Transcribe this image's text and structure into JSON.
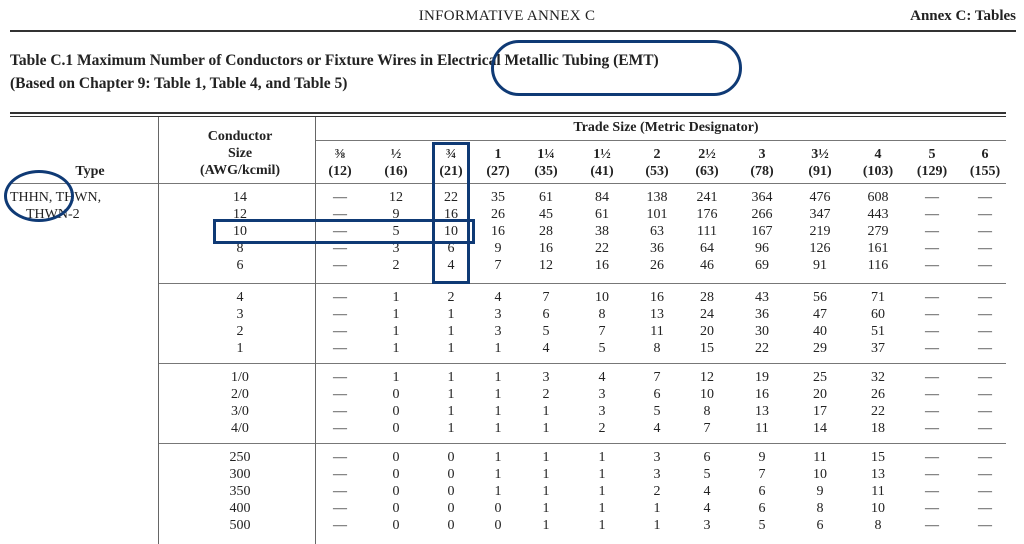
{
  "page_header": {
    "center": "INFORMATIVE ANNEX C",
    "right": "Annex C: Tables"
  },
  "title": {
    "line1": "Table C.1  Maximum Number of Conductors or Fixture Wires in Electrical Metallic Tubing (EMT)",
    "line2": "(Based on Chapter 9: Table 1, Table 4, and Table 5)"
  },
  "table": {
    "type_header": "Type",
    "size_header": [
      "Conductor",
      "Size",
      "(AWG/kcmil)"
    ],
    "trade_header": "Trade Size (Metric Designator)",
    "trade_sizes": [
      {
        "size": "⅜",
        "metric": "(12)"
      },
      {
        "size": "½",
        "metric": "(16)"
      },
      {
        "size": "¾",
        "metric": "(21)"
      },
      {
        "size": "1",
        "metric": "(27)"
      },
      {
        "size": "1¼",
        "metric": "(35)"
      },
      {
        "size": "1½",
        "metric": "(41)"
      },
      {
        "size": "2",
        "metric": "(53)"
      },
      {
        "size": "2½",
        "metric": "(63)"
      },
      {
        "size": "3",
        "metric": "(78)"
      },
      {
        "size": "3½",
        "metric": "(91)"
      },
      {
        "size": "4",
        "metric": "(103)"
      },
      {
        "size": "5",
        "metric": "(129)"
      },
      {
        "size": "6",
        "metric": "(155)"
      }
    ],
    "type_label": [
      "THHN, THWN,",
      "THWN-2"
    ],
    "groups": [
      [
        {
          "size": "14",
          "values": [
            "—",
            "12",
            "22",
            "35",
            "61",
            "84",
            "138",
            "241",
            "364",
            "476",
            "608",
            "—",
            "—"
          ]
        },
        {
          "size": "12",
          "values": [
            "—",
            "9",
            "16",
            "26",
            "45",
            "61",
            "101",
            "176",
            "266",
            "347",
            "443",
            "—",
            "—"
          ]
        },
        {
          "size": "10",
          "values": [
            "—",
            "5",
            "10",
            "16",
            "28",
            "38",
            "63",
            "111",
            "167",
            "219",
            "279",
            "—",
            "—"
          ]
        },
        {
          "size": "8",
          "values": [
            "—",
            "3",
            "6",
            "9",
            "16",
            "22",
            "36",
            "64",
            "96",
            "126",
            "161",
            "—",
            "—"
          ]
        },
        {
          "size": "6",
          "values": [
            "—",
            "2",
            "4",
            "7",
            "12",
            "16",
            "26",
            "46",
            "69",
            "91",
            "116",
            "—",
            "—"
          ]
        }
      ],
      [
        {
          "size": "4",
          "values": [
            "—",
            "1",
            "2",
            "4",
            "7",
            "10",
            "16",
            "28",
            "43",
            "56",
            "71",
            "—",
            "—"
          ]
        },
        {
          "size": "3",
          "values": [
            "—",
            "1",
            "1",
            "3",
            "6",
            "8",
            "13",
            "24",
            "36",
            "47",
            "60",
            "—",
            "—"
          ]
        },
        {
          "size": "2",
          "values": [
            "—",
            "1",
            "1",
            "3",
            "5",
            "7",
            "11",
            "20",
            "30",
            "40",
            "51",
            "—",
            "—"
          ]
        },
        {
          "size": "1",
          "values": [
            "—",
            "1",
            "1",
            "1",
            "4",
            "5",
            "8",
            "15",
            "22",
            "29",
            "37",
            "—",
            "—"
          ]
        }
      ],
      [
        {
          "size": "1/0",
          "values": [
            "—",
            "1",
            "1",
            "1",
            "3",
            "4",
            "7",
            "12",
            "19",
            "25",
            "32",
            "—",
            "—"
          ]
        },
        {
          "size": "2/0",
          "values": [
            "—",
            "0",
            "1",
            "1",
            "2",
            "3",
            "6",
            "10",
            "16",
            "20",
            "26",
            "—",
            "—"
          ]
        },
        {
          "size": "3/0",
          "values": [
            "—",
            "0",
            "1",
            "1",
            "1",
            "3",
            "5",
            "8",
            "13",
            "17",
            "22",
            "—",
            "—"
          ]
        },
        {
          "size": "4/0",
          "values": [
            "—",
            "0",
            "1",
            "1",
            "1",
            "2",
            "4",
            "7",
            "11",
            "14",
            "18",
            "—",
            "—"
          ]
        }
      ],
      [
        {
          "size": "250",
          "values": [
            "—",
            "0",
            "0",
            "1",
            "1",
            "1",
            "3",
            "6",
            "9",
            "11",
            "15",
            "—",
            "—"
          ]
        },
        {
          "size": "300",
          "values": [
            "—",
            "0",
            "0",
            "1",
            "1",
            "1",
            "3",
            "5",
            "7",
            "10",
            "13",
            "—",
            "—"
          ]
        },
        {
          "size": "350",
          "values": [
            "—",
            "0",
            "0",
            "1",
            "1",
            "1",
            "2",
            "4",
            "6",
            "9",
            "11",
            "—",
            "—"
          ]
        },
        {
          "size": "400",
          "values": [
            "—",
            "0",
            "0",
            "0",
            "1",
            "1",
            "1",
            "4",
            "6",
            "8",
            "10",
            "—",
            "—"
          ]
        },
        {
          "size": "500",
          "values": [
            "—",
            "0",
            "0",
            "0",
            "1",
            "1",
            "1",
            "3",
            "5",
            "6",
            "8",
            "—",
            "—"
          ]
        }
      ]
    ]
  },
  "annotations": {
    "color": "#0f3a75"
  }
}
